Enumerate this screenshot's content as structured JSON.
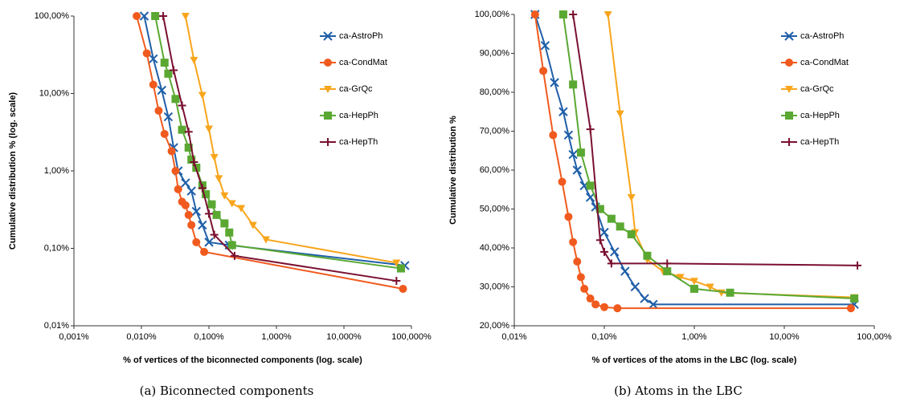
{
  "chart_data": [
    {
      "type": "line",
      "caption": "(a) Biconnected components",
      "xlabel": "% of vertices of the biconnected components (log. scale)",
      "ylabel": "Cumulative distribution % (log. scale)",
      "xscale": "log",
      "yscale": "log",
      "grid": false,
      "legend": "top-right",
      "xlim": [
        0.001,
        100
      ],
      "xticks": [
        {
          "value": 0.001,
          "label": "0,001%"
        },
        {
          "value": 0.01,
          "label": "0,010%"
        },
        {
          "value": 0.1,
          "label": "0,100%"
        },
        {
          "value": 1,
          "label": "1,000%"
        },
        {
          "value": 10,
          "label": "10,000%"
        },
        {
          "value": 100,
          "label": "100,000%"
        }
      ],
      "ylim": [
        0.01,
        100
      ],
      "yticks": [
        {
          "value": 0.01,
          "label": "0,01%"
        },
        {
          "value": 0.1,
          "label": "0,10%"
        },
        {
          "value": 1,
          "label": "1,00%"
        },
        {
          "value": 10,
          "label": "10,00%"
        },
        {
          "value": 100,
          "label": "100,00%"
        }
      ],
      "series": [
        {
          "name": "ca-AstroPh",
          "color": "#1f5fa8",
          "marker": "x",
          "x": [
            0.011,
            0.015,
            0.02,
            0.025,
            0.03,
            0.035,
            0.045,
            0.055,
            0.065,
            0.08,
            0.1,
            0.2,
            80
          ],
          "values": [
            100,
            28,
            11,
            5,
            2,
            1,
            0.7,
            0.55,
            0.3,
            0.2,
            0.12,
            0.11,
            0.06
          ]
        },
        {
          "name": "ca-CondMat",
          "color": "#f05a1e",
          "marker": "circle",
          "x": [
            0.0085,
            0.012,
            0.015,
            0.018,
            0.022,
            0.028,
            0.032,
            0.035,
            0.04,
            0.045,
            0.05,
            0.055,
            0.065,
            0.085,
            75
          ],
          "values": [
            100,
            33,
            13,
            6,
            3,
            1.8,
            1.0,
            0.58,
            0.4,
            0.36,
            0.27,
            0.2,
            0.12,
            0.09,
            0.03
          ]
        },
        {
          "name": "ca-GrQc",
          "color": "#f8a51c",
          "marker": "triangle",
          "x": [
            0.045,
            0.06,
            0.08,
            0.1,
            0.12,
            0.14,
            0.17,
            0.22,
            0.3,
            0.45,
            0.7,
            60
          ],
          "values": [
            100,
            27,
            9.5,
            3.5,
            1.5,
            0.8,
            0.48,
            0.38,
            0.33,
            0.2,
            0.13,
            0.065
          ]
        },
        {
          "name": "ca-HepPh",
          "color": "#5aa832",
          "marker": "square",
          "x": [
            0.016,
            0.022,
            0.025,
            0.032,
            0.04,
            0.05,
            0.055,
            0.065,
            0.08,
            0.09,
            0.11,
            0.13,
            0.17,
            0.2,
            0.22,
            70
          ],
          "values": [
            100,
            25,
            18,
            8.5,
            3.4,
            2.0,
            1.4,
            1.1,
            0.65,
            0.5,
            0.37,
            0.27,
            0.21,
            0.16,
            0.11,
            0.055
          ]
        },
        {
          "name": "ca-HepTh",
          "color": "#7a1030",
          "marker": "plus",
          "x": [
            0.021,
            0.03,
            0.04,
            0.05,
            0.06,
            0.08,
            0.1,
            0.12,
            0.24,
            60
          ],
          "values": [
            100,
            20,
            7,
            3.2,
            1.3,
            0.6,
            0.28,
            0.15,
            0.08,
            0.038
          ]
        }
      ]
    },
    {
      "type": "line",
      "caption": "(b) Atoms in the LBC",
      "xlabel": "% of vertices of the atoms in the LBC (log. scale)",
      "ylabel": "Cumulative distribution %",
      "xscale": "log",
      "yscale": "linear",
      "grid": false,
      "legend": "top-right",
      "xlim": [
        0.01,
        100
      ],
      "xticks": [
        {
          "value": 0.01,
          "label": "0,01%"
        },
        {
          "value": 0.1,
          "label": "0,10%"
        },
        {
          "value": 1,
          "label": "1,00%"
        },
        {
          "value": 10,
          "label": "10,00%"
        },
        {
          "value": 100,
          "label": "100,00%"
        }
      ],
      "ylim": [
        20,
        100
      ],
      "yticks": [
        {
          "value": 20,
          "label": "20,00%"
        },
        {
          "value": 30,
          "label": "30,00%"
        },
        {
          "value": 40,
          "label": "40,00%"
        },
        {
          "value": 50,
          "label": "50,00%"
        },
        {
          "value": 60,
          "label": "60,00%"
        },
        {
          "value": 70,
          "label": "70,00%"
        },
        {
          "value": 80,
          "label": "80,00%"
        },
        {
          "value": 90,
          "label": "90,00%"
        },
        {
          "value": 100,
          "label": "100,00%"
        }
      ],
      "series": [
        {
          "name": "ca-AstroPh",
          "color": "#1f5fa8",
          "marker": "x",
          "x": [
            0.017,
            0.022,
            0.028,
            0.035,
            0.04,
            0.045,
            0.05,
            0.06,
            0.07,
            0.08,
            0.1,
            0.13,
            0.17,
            0.22,
            0.28,
            0.35,
            60
          ],
          "values": [
            100,
            92,
            82.5,
            75,
            69,
            64,
            60,
            56,
            53,
            50.5,
            44,
            39,
            34,
            30,
            27,
            25.5,
            25.5
          ]
        },
        {
          "name": "ca-CondMat",
          "color": "#f05a1e",
          "marker": "circle",
          "x": [
            0.017,
            0.021,
            0.027,
            0.034,
            0.04,
            0.045,
            0.05,
            0.055,
            0.06,
            0.07,
            0.08,
            0.1,
            0.14,
            55
          ],
          "values": [
            100,
            85.5,
            69,
            57,
            48,
            41.5,
            36.5,
            32.5,
            29.5,
            27,
            25.5,
            24.8,
            24.5,
            24.5
          ]
        },
        {
          "name": "ca-GrQc",
          "color": "#f8a51c",
          "marker": "triangle",
          "x": [
            0.11,
            0.15,
            0.2,
            0.22,
            0.3,
            0.45,
            0.7,
            1.0,
            1.5,
            2.0,
            60
          ],
          "values": [
            100,
            74.5,
            53,
            44,
            37,
            34,
            32.5,
            31.5,
            30,
            28.5,
            27.3
          ]
        },
        {
          "name": "ca-HepPh",
          "color": "#5aa832",
          "marker": "square",
          "x": [
            0.035,
            0.045,
            0.055,
            0.07,
            0.09,
            0.12,
            0.15,
            0.2,
            0.3,
            0.5,
            1.0,
            2.5,
            60
          ],
          "values": [
            100,
            82,
            64.5,
            56,
            50,
            47.5,
            45.5,
            43.5,
            38,
            34,
            29.5,
            28.5,
            27
          ]
        },
        {
          "name": "ca-HepTh",
          "color": "#7a1030",
          "marker": "plus",
          "x": [
            0.045,
            0.07,
            0.09,
            0.1,
            0.12,
            0.5,
            65
          ],
          "values": [
            100,
            70.5,
            42,
            39,
            36,
            36,
            35.5
          ]
        }
      ]
    }
  ]
}
